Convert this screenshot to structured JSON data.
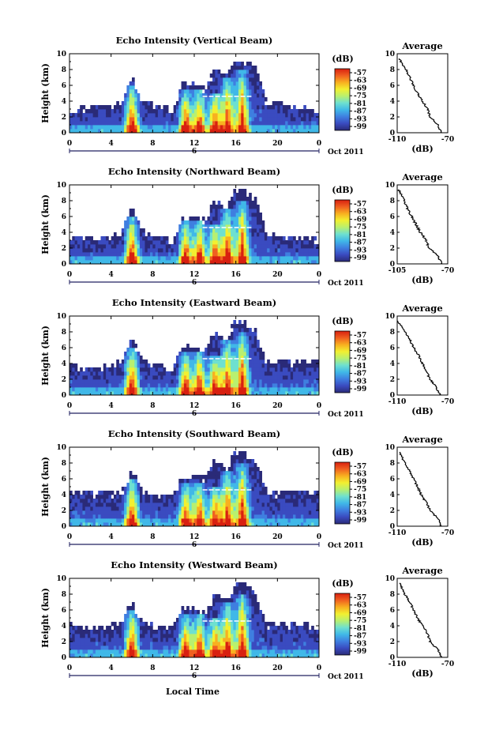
{
  "figure": {
    "x_axis_label": "Local Time",
    "y_axis_label": "Height (km)",
    "date_label": "Oct 2011",
    "date_marker": "6",
    "colorbar_unit": "(dB)",
    "colorbar_ticks": [
      "-57",
      "-63",
      "-69",
      "-75",
      "-81",
      "-87",
      "-93",
      "-99"
    ],
    "avg_title": "Average",
    "avg_xlabel": "(dB)"
  },
  "colors": {
    "colormap": [
      "#2a2a78",
      "#3a4bc0",
      "#3f7fe0",
      "#40b8e8",
      "#6ee0d0",
      "#b8f070",
      "#f2f030",
      "#f8b020",
      "#f06020",
      "#d82010"
    ],
    "line": "#000000"
  },
  "chart_data": [
    {
      "type": "heatmap",
      "title": "Echo Intensity (Vertical Beam)",
      "xlabel": "",
      "ylabel": "Height (km)",
      "x_ticks": [
        "0",
        "4",
        "8",
        "12",
        "16",
        "20",
        "0"
      ],
      "y_ticks": [
        "0",
        "2",
        "4",
        "6",
        "8",
        "10"
      ],
      "xlim": [
        0,
        24
      ],
      "ylim": [
        0,
        10
      ],
      "colorbar_range": [
        -99,
        -57
      ],
      "echo_tops_km": [
        3.0,
        3.0,
        3.2,
        3.2,
        3.5,
        4.0,
        7.0,
        4.2,
        3.5,
        3.2,
        3.0,
        6.5,
        6.0,
        5.5,
        8.0,
        7.0,
        9.5,
        9.0,
        8.0,
        3.5,
        4.0,
        3.2,
        3.5,
        3.0,
        3.0
      ],
      "cores": [
        {
          "hour": 6.0,
          "top_km": 6.0
        },
        {
          "hour": 11.2,
          "top_km": 5.2
        },
        {
          "hour": 12.5,
          "top_km": 5.5
        },
        {
          "hour": 14.0,
          "top_km": 5.0
        },
        {
          "hour": 15.2,
          "top_km": 7.0
        },
        {
          "hour": 16.6,
          "top_km": 8.0
        }
      ],
      "average_profile": {
        "title": "Average",
        "xlabel": "(dB)",
        "x_ticks": [
          "-110",
          "-70"
        ],
        "xlim": [
          -110,
          -70
        ],
        "heights_km": [
          0,
          1,
          2,
          3,
          4,
          5,
          6,
          7,
          8,
          9
        ],
        "values_db": [
          -75,
          -78,
          -84,
          -86,
          -90,
          -94,
          -97,
          -100,
          -103,
          -107
        ]
      }
    },
    {
      "type": "heatmap",
      "title": "Echo Intensity (Northward Beam)",
      "xlabel": "",
      "ylabel": "Height (km)",
      "x_ticks": [
        "0",
        "4",
        "8",
        "12",
        "16",
        "20",
        "0"
      ],
      "y_ticks": [
        "0",
        "2",
        "4",
        "6",
        "8",
        "10"
      ],
      "xlim": [
        0,
        24
      ],
      "ylim": [
        0,
        10
      ],
      "colorbar_range": [
        -99,
        -57
      ],
      "echo_tops_km": [
        3.5,
        3.5,
        3.2,
        3.2,
        3.5,
        4.0,
        7.0,
        4.2,
        3.5,
        3.2,
        3.0,
        6.0,
        6.0,
        5.5,
        8.0,
        7.0,
        9.5,
        9.0,
        8.0,
        3.8,
        4.0,
        3.5,
        3.5,
        3.2,
        3.0
      ],
      "cores": [
        {
          "hour": 6.0,
          "top_km": 6.0
        },
        {
          "hour": 11.2,
          "top_km": 5.2
        },
        {
          "hour": 12.5,
          "top_km": 5.5
        },
        {
          "hour": 14.0,
          "top_km": 5.0
        },
        {
          "hour": 15.2,
          "top_km": 7.0
        },
        {
          "hour": 16.6,
          "top_km": 8.0
        }
      ],
      "average_profile": {
        "title": "Average",
        "xlabel": "(dB)",
        "x_ticks": [
          "-105",
          "-70"
        ],
        "xlim": [
          -105,
          -70
        ],
        "heights_km": [
          0,
          1,
          2,
          3,
          4,
          5,
          6,
          7,
          8,
          9
        ],
        "values_db": [
          -74,
          -77,
          -83,
          -85,
          -89,
          -92,
          -95,
          -98,
          -100,
          -103
        ]
      }
    },
    {
      "type": "heatmap",
      "title": "Echo Intensity (Eastward Beam)",
      "xlabel": "",
      "ylabel": "Height (km)",
      "x_ticks": [
        "0",
        "4",
        "8",
        "12",
        "16",
        "20",
        "0"
      ],
      "y_ticks": [
        "0",
        "2",
        "4",
        "6",
        "8",
        "10"
      ],
      "xlim": [
        0,
        24
      ],
      "ylim": [
        0,
        10
      ],
      "colorbar_range": [
        -99,
        -57
      ],
      "echo_tops_km": [
        4.0,
        3.5,
        3.2,
        3.5,
        3.8,
        4.2,
        7.0,
        4.5,
        3.8,
        3.5,
        3.5,
        6.5,
        6.0,
        5.5,
        8.0,
        7.0,
        9.5,
        9.0,
        8.0,
        4.0,
        4.5,
        4.0,
        4.2,
        4.5,
        4.0
      ],
      "cores": [
        {
          "hour": 6.0,
          "top_km": 6.0
        },
        {
          "hour": 11.2,
          "top_km": 5.2
        },
        {
          "hour": 12.5,
          "top_km": 5.5
        },
        {
          "hour": 14.0,
          "top_km": 5.0
        },
        {
          "hour": 15.2,
          "top_km": 7.0
        },
        {
          "hour": 16.6,
          "top_km": 8.0
        }
      ],
      "average_profile": {
        "title": "Average",
        "xlabel": "(dB)",
        "x_ticks": [
          "-110",
          "-70"
        ],
        "xlim": [
          -110,
          -70
        ],
        "heights_km": [
          0,
          1,
          2,
          3,
          4,
          5,
          6,
          7,
          8,
          9
        ],
        "values_db": [
          -76,
          -79,
          -84,
          -87,
          -90,
          -93,
          -97,
          -100,
          -104,
          -108
        ]
      }
    },
    {
      "type": "heatmap",
      "title": "Echo Intensity (Southward Beam)",
      "xlabel": "",
      "ylabel": "Height (km)",
      "x_ticks": [
        "0",
        "4",
        "8",
        "12",
        "16",
        "20",
        "0"
      ],
      "y_ticks": [
        "0",
        "2",
        "4",
        "6",
        "8",
        "10"
      ],
      "xlim": [
        0,
        24
      ],
      "ylim": [
        0,
        10
      ],
      "colorbar_range": [
        -99,
        -57
      ],
      "echo_tops_km": [
        4.2,
        4.2,
        4.0,
        4.2,
        4.0,
        4.2,
        7.0,
        4.5,
        4.0,
        3.8,
        4.0,
        6.5,
        6.5,
        6.0,
        8.5,
        7.0,
        9.5,
        9.0,
        8.0,
        4.5,
        4.0,
        4.2,
        4.5,
        4.2,
        4.0
      ],
      "cores": [
        {
          "hour": 6.0,
          "top_km": 6.0
        },
        {
          "hour": 11.2,
          "top_km": 5.2
        },
        {
          "hour": 12.5,
          "top_km": 5.5
        },
        {
          "hour": 14.0,
          "top_km": 5.0
        },
        {
          "hour": 15.2,
          "top_km": 7.0
        },
        {
          "hour": 16.6,
          "top_km": 8.0
        }
      ],
      "average_profile": {
        "title": "Average",
        "xlabel": "(dB)",
        "x_ticks": [
          "-110",
          "-70"
        ],
        "xlim": [
          -110,
          -70
        ],
        "heights_km": [
          0,
          1,
          2,
          3,
          4,
          5,
          6,
          7,
          8,
          9
        ],
        "values_db": [
          -75,
          -78,
          -84,
          -87,
          -91,
          -94,
          -97,
          -100,
          -104,
          -107
        ]
      }
    },
    {
      "type": "heatmap",
      "title": "Echo Intensity (Westward Beam)",
      "xlabel": "Local Time",
      "ylabel": "Height (km)",
      "x_ticks": [
        "0",
        "4",
        "8",
        "12",
        "16",
        "20",
        "0"
      ],
      "y_ticks": [
        "0",
        "2",
        "4",
        "6",
        "8",
        "10"
      ],
      "xlim": [
        0,
        24
      ],
      "ylim": [
        0,
        10
      ],
      "colorbar_range": [
        -99,
        -57
      ],
      "echo_tops_km": [
        4.5,
        4.0,
        3.5,
        3.8,
        4.0,
        4.5,
        7.0,
        4.5,
        4.0,
        3.5,
        3.8,
        6.5,
        6.0,
        5.5,
        8.0,
        7.0,
        9.5,
        9.0,
        8.0,
        4.0,
        4.5,
        4.0,
        4.5,
        4.0,
        3.8
      ],
      "cores": [
        {
          "hour": 6.0,
          "top_km": 6.0
        },
        {
          "hour": 11.2,
          "top_km": 5.2
        },
        {
          "hour": 12.5,
          "top_km": 5.5
        },
        {
          "hour": 14.0,
          "top_km": 5.0
        },
        {
          "hour": 15.2,
          "top_km": 7.0
        },
        {
          "hour": 16.6,
          "top_km": 8.0
        }
      ],
      "average_profile": {
        "title": "Average",
        "xlabel": "(dB)",
        "x_ticks": [
          "-110",
          "-70"
        ],
        "xlim": [
          -110,
          -70
        ],
        "heights_km": [
          0,
          1,
          2,
          3,
          4,
          5,
          6,
          7,
          8,
          9
        ],
        "values_db": [
          -75,
          -78,
          -84,
          -86,
          -90,
          -94,
          -97,
          -100,
          -104,
          -107
        ]
      }
    }
  ]
}
